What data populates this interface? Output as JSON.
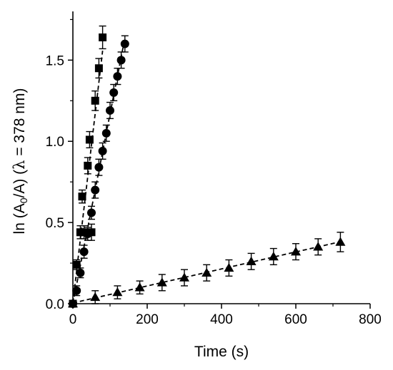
{
  "chart_data": {
    "type": "scatter",
    "xlabel": "Time (s)",
    "ylabel": {
      "prefix": "ln (A",
      "sub": "0",
      "middle": "/A) (",
      "lambda": "λ",
      "suffix": " = 378 nm)"
    },
    "xlim": [
      0,
      800
    ],
    "ylim": [
      0,
      1.8
    ],
    "xticks": [
      0,
      200,
      400,
      600,
      800
    ],
    "yticks": [
      0.0,
      0.5,
      1.0,
      1.5
    ],
    "xtick_labels": [
      "0",
      "200",
      "400",
      "600",
      "800"
    ],
    "ytick_labels": [
      "0.0",
      "0.5",
      "1.0",
      "1.5"
    ],
    "grid": false,
    "series": [
      {
        "marker": "square",
        "fit_line": "dashed",
        "x": [
          0,
          10,
          20,
          25,
          30,
          40,
          45,
          50,
          60,
          70,
          80
        ],
        "y": [
          0.0,
          0.24,
          0.44,
          0.66,
          0.44,
          0.85,
          1.01,
          0.44,
          1.25,
          1.45,
          1.64
        ],
        "yerr": [
          0.02,
          0.03,
          0.04,
          0.04,
          0.04,
          0.05,
          0.05,
          0.05,
          0.06,
          0.06,
          0.07
        ]
      },
      {
        "marker": "circle",
        "fit_line": "dashed",
        "x": [
          0,
          10,
          20,
          30,
          40,
          50,
          60,
          70,
          80,
          90,
          100,
          110,
          120,
          130,
          140
        ],
        "y": [
          0.0,
          0.08,
          0.19,
          0.32,
          0.43,
          0.56,
          0.7,
          0.84,
          0.94,
          1.05,
          1.19,
          1.3,
          1.4,
          1.5,
          1.6
        ],
        "yerr": [
          0.02,
          0.03,
          0.03,
          0.04,
          0.04,
          0.04,
          0.05,
          0.05,
          0.05,
          0.05,
          0.05,
          0.05,
          0.05,
          0.05,
          0.05
        ]
      },
      {
        "marker": "triangle",
        "fit_line": "dashed",
        "x": [
          0,
          60,
          120,
          180,
          240,
          300,
          360,
          420,
          480,
          540,
          600,
          660,
          720
        ],
        "y": [
          0.0,
          0.04,
          0.07,
          0.1,
          0.13,
          0.16,
          0.19,
          0.22,
          0.26,
          0.29,
          0.32,
          0.35,
          0.38
        ],
        "yerr": [
          0.02,
          0.04,
          0.04,
          0.04,
          0.05,
          0.05,
          0.05,
          0.05,
          0.05,
          0.05,
          0.05,
          0.05,
          0.06
        ]
      }
    ]
  }
}
